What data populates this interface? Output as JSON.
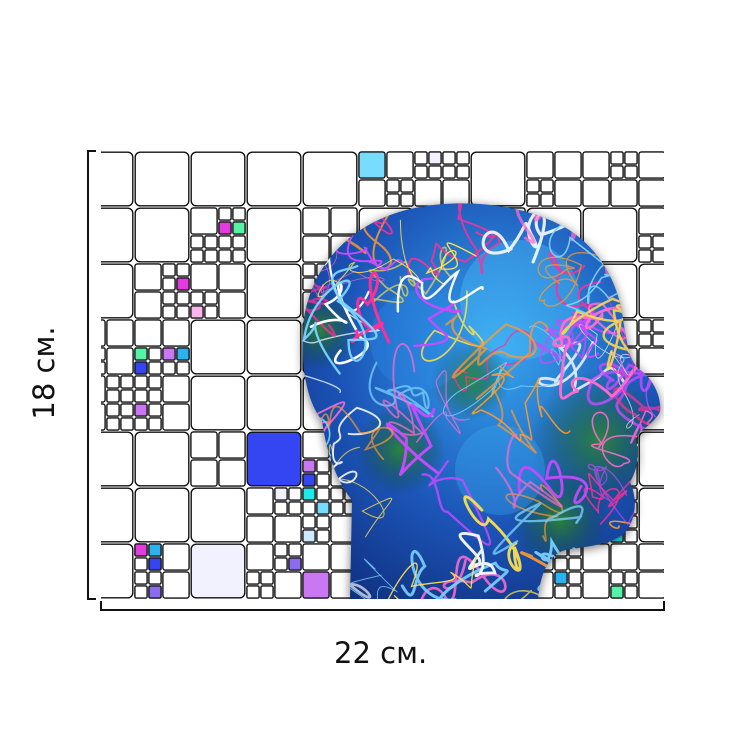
{
  "width_label": "22 см.",
  "height_label": "18 см.",
  "colors": {
    "grid_line": "#111111",
    "ruler": "#111111",
    "head_base": "#0e2a78",
    "head_glow": "#36a6ee",
    "accents": [
      "#8a6cf0",
      "#c977f2",
      "#f9b5ee",
      "#78dcff",
      "#3346f2",
      "#2ab3ee",
      "#56f2a6",
      "#1fe8e8",
      "#e33be0",
      "#f2f2ff",
      "#cfe9ff"
    ],
    "swirls": [
      "#ff2f9a",
      "#ffffff",
      "#ff9a2e",
      "#c64bff",
      "#ff6bd0",
      "#ffe24a",
      "#7bd2ff"
    ]
  }
}
